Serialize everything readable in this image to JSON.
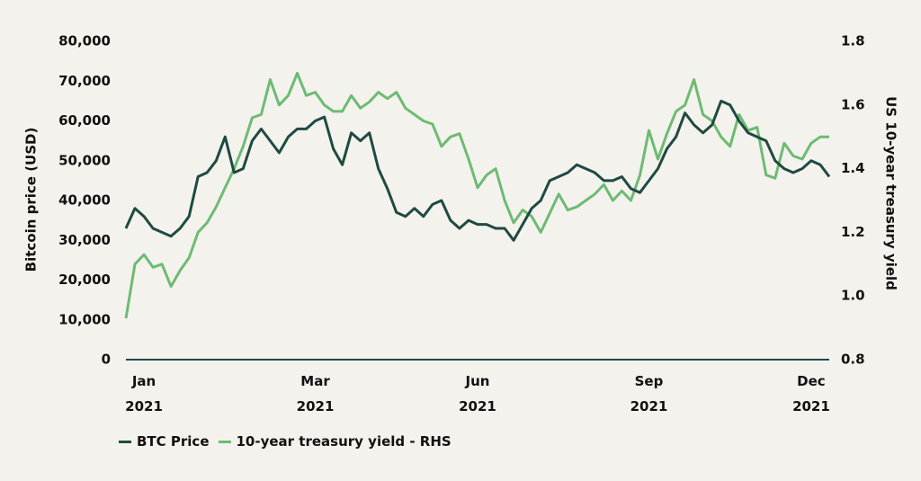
{
  "chart_data": {
    "type": "line",
    "y_label": "Bitcoin price (USD)",
    "y2_label": "US 10-year treasury yield",
    "categories": [
      null,
      null,
      "Jan 2021",
      null,
      null,
      null,
      null,
      null,
      null,
      null,
      null,
      null,
      null,
      null,
      null,
      null,
      null,
      null,
      null,
      null,
      null,
      "Mar 2021",
      null,
      null,
      null,
      null,
      null,
      null,
      null,
      null,
      null,
      null,
      null,
      null,
      null,
      null,
      null,
      null,
      null,
      "Jun 2021",
      null,
      null,
      null,
      null,
      null,
      null,
      null,
      null,
      null,
      null,
      null,
      null,
      null,
      null,
      null,
      null,
      null,
      null,
      "Sep 2021",
      null,
      null,
      null,
      null,
      null,
      null,
      null,
      null,
      null,
      null,
      null,
      null,
      null,
      null,
      null,
      null,
      null,
      "Dec 2021",
      null,
      null
    ],
    "series": [
      {
        "name": "BTC Price",
        "color": "#1e4a42",
        "axis": "y",
        "values": [
          33000,
          38000,
          36000,
          33000,
          32000,
          31000,
          33000,
          36000,
          46000,
          47000,
          50000,
          56000,
          47000,
          48000,
          55000,
          58000,
          55000,
          52000,
          56000,
          58000,
          58000,
          60000,
          61000,
          53000,
          49000,
          57000,
          55000,
          57000,
          48000,
          43000,
          37000,
          36000,
          38000,
          36000,
          39000,
          40000,
          35000,
          33000,
          35000,
          34000,
          34000,
          33000,
          33000,
          30000,
          34000,
          38000,
          40000,
          45000,
          46000,
          47000,
          49000,
          48000,
          47000,
          45000,
          45000,
          46000,
          43000,
          42000,
          45000,
          48000,
          53000,
          56000,
          62000,
          59000,
          57000,
          59000,
          65000,
          64000,
          60000,
          57000,
          56000,
          55000,
          50000,
          48000,
          47000,
          48000,
          50000,
          49000,
          46000
        ]
      },
      {
        "name": "10-year treasury yield - RHS",
        "color": "#6dbb73",
        "axis": "y2",
        "values": [
          0.93,
          1.1,
          1.13,
          1.09,
          1.1,
          1.03,
          1.08,
          1.12,
          1.2,
          1.23,
          1.28,
          1.34,
          1.4,
          1.47,
          1.56,
          1.57,
          1.68,
          1.6,
          1.63,
          1.7,
          1.63,
          1.64,
          1.6,
          1.58,
          1.58,
          1.63,
          1.59,
          1.61,
          1.64,
          1.62,
          1.64,
          1.59,
          1.57,
          1.55,
          1.54,
          1.47,
          1.5,
          1.51,
          1.43,
          1.34,
          1.38,
          1.4,
          1.3,
          1.23,
          1.27,
          1.25,
          1.2,
          1.26,
          1.32,
          1.27,
          1.28,
          1.3,
          1.32,
          1.35,
          1.3,
          1.33,
          1.3,
          1.38,
          1.52,
          1.43,
          1.51,
          1.58,
          1.6,
          1.68,
          1.57,
          1.55,
          1.5,
          1.47,
          1.57,
          1.52,
          1.53,
          1.38,
          1.37,
          1.48,
          1.44,
          1.43,
          1.48,
          1.5,
          1.5
        ]
      }
    ],
    "ylim": [
      0,
      80000
    ],
    "yticks": [
      0,
      {
        "value": 10000,
        "label": "10,000"
      },
      {
        "value": 20000,
        "label": "20,000"
      },
      {
        "value": 30000,
        "label": "30,000"
      },
      {
        "value": 40000,
        "label": "40,000"
      },
      {
        "value": 50000,
        "label": "50,000"
      },
      {
        "value": 60000,
        "label": "60,000"
      },
      {
        "value": 70000,
        "label": "70,000"
      },
      {
        "value": 80000,
        "label": "80,000"
      }
    ],
    "y2lim": [
      0.8,
      1.8
    ],
    "y2ticks": [
      0.8,
      {
        "value": 1,
        "label": "1.0"
      },
      1.2,
      1.4,
      1.6,
      1.8
    ],
    "grid": false,
    "legend": "bottom-left"
  }
}
